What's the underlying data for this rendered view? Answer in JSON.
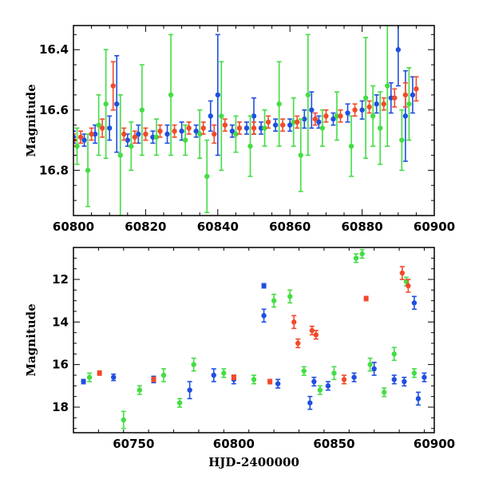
{
  "chart_data": [
    {
      "type": "scatter",
      "title": "",
      "xlabel": "",
      "ylabel": "Magnitude",
      "xlim": [
        60800,
        60900
      ],
      "ylim": [
        16.95,
        16.32
      ],
      "y_inverted": true,
      "error_bars": true,
      "x_ticks": [
        60800,
        60820,
        60840,
        60860,
        60880,
        60900
      ],
      "y_ticks": [
        16.4,
        16.6,
        16.8
      ],
      "series": [
        {
          "color": "#1f4fe0",
          "x": [
            60800,
            60803,
            60806,
            60810,
            60812,
            60815,
            60818,
            60822,
            60826,
            60830,
            60834,
            60838,
            60840,
            60844,
            60848,
            60850,
            60852,
            60856,
            60860,
            60864,
            60866,
            60868,
            60872,
            60876,
            60880,
            60884,
            60888,
            60890,
            60892,
            60894
          ],
          "y": [
            16.69,
            16.7,
            16.68,
            16.66,
            16.58,
            16.7,
            16.68,
            16.69,
            16.68,
            16.67,
            16.67,
            16.62,
            16.55,
            16.67,
            16.66,
            16.62,
            16.66,
            16.65,
            16.65,
            16.63,
            16.6,
            16.64,
            16.63,
            16.61,
            16.6,
            16.58,
            16.56,
            16.4,
            16.62,
            16.55
          ],
          "err": [
            0.02,
            0.02,
            0.03,
            0.04,
            0.16,
            0.02,
            0.03,
            0.02,
            0.03,
            0.03,
            0.02,
            0.05,
            0.2,
            0.02,
            0.02,
            0.06,
            0.02,
            0.02,
            0.02,
            0.03,
            0.06,
            0.02,
            0.02,
            0.03,
            0.03,
            0.03,
            0.05,
            0.12,
            0.15,
            0.06
          ]
        },
        {
          "color": "#44dd44",
          "x": [
            60801,
            60804,
            60807,
            60809,
            60813,
            60816,
            60819,
            60823,
            60827,
            60831,
            60835,
            60837,
            60841,
            60845,
            60849,
            60853,
            60857,
            60861,
            60863,
            60865,
            60869,
            60873,
            60877,
            60881,
            60883,
            60885,
            60887,
            60891,
            60893
          ],
          "y": [
            16.72,
            16.8,
            16.65,
            16.58,
            16.75,
            16.72,
            16.6,
            16.69,
            16.55,
            16.7,
            16.68,
            16.82,
            16.62,
            16.68,
            16.72,
            16.66,
            16.58,
            16.64,
            16.75,
            16.55,
            16.66,
            16.62,
            16.72,
            16.56,
            16.62,
            16.66,
            16.52,
            16.7,
            16.58
          ],
          "err": [
            0.06,
            0.12,
            0.1,
            0.18,
            0.2,
            0.08,
            0.15,
            0.06,
            0.2,
            0.05,
            0.08,
            0.12,
            0.18,
            0.06,
            0.1,
            0.06,
            0.14,
            0.08,
            0.12,
            0.2,
            0.06,
            0.08,
            0.1,
            0.2,
            0.1,
            0.12,
            0.2,
            0.1,
            0.12
          ]
        },
        {
          "color": "#f24a2a",
          "x": [
            60800,
            60802,
            60805,
            60808,
            60811,
            60814,
            60817,
            60820,
            60824,
            60828,
            60832,
            60836,
            60839,
            60842,
            60846,
            60850,
            60854,
            60858,
            60862,
            60867,
            60870,
            60874,
            60878,
            60882,
            60886,
            60889,
            60892,
            60895
          ],
          "y": [
            16.7,
            16.69,
            16.68,
            16.66,
            16.52,
            16.68,
            16.69,
            16.68,
            16.67,
            16.67,
            16.66,
            16.66,
            16.68,
            16.65,
            16.66,
            16.66,
            16.64,
            16.65,
            16.64,
            16.63,
            16.62,
            16.62,
            16.6,
            16.59,
            16.58,
            16.56,
            16.55,
            16.53
          ],
          "err": [
            0.02,
            0.02,
            0.02,
            0.03,
            0.08,
            0.02,
            0.02,
            0.02,
            0.02,
            0.02,
            0.02,
            0.02,
            0.03,
            0.02,
            0.02,
            0.02,
            0.02,
            0.02,
            0.02,
            0.02,
            0.02,
            0.02,
            0.02,
            0.02,
            0.02,
            0.03,
            0.04,
            0.04
          ]
        }
      ]
    },
    {
      "type": "scatter",
      "title": "",
      "xlabel": "HJD-2400000",
      "ylabel": "Magnitude",
      "xlim": [
        60720,
        60900
      ],
      "ylim": [
        19.2,
        10.5
      ],
      "y_inverted": true,
      "error_bars": true,
      "x_ticks": [
        60750,
        60800,
        60850,
        60900
      ],
      "y_ticks": [
        12,
        14,
        16,
        18
      ],
      "series": [
        {
          "color": "#1f4fe0",
          "x": [
            60725,
            60740,
            60760,
            60778,
            60790,
            60800,
            60815,
            60815,
            60822,
            60838,
            60840,
            60847,
            60860,
            60870,
            60880,
            60885,
            60890,
            60892,
            60895
          ],
          "y": [
            16.8,
            16.6,
            16.7,
            17.2,
            16.5,
            16.7,
            12.3,
            13.7,
            16.9,
            17.8,
            16.8,
            17.0,
            16.6,
            16.2,
            16.7,
            16.8,
            13.1,
            17.6,
            16.6
          ],
          "err": [
            0.1,
            0.15,
            0.15,
            0.4,
            0.3,
            0.2,
            0.1,
            0.3,
            0.2,
            0.3,
            0.2,
            0.2,
            0.2,
            0.3,
            0.2,
            0.2,
            0.3,
            0.3,
            0.2
          ]
        },
        {
          "color": "#44dd44",
          "x": [
            60728,
            60745,
            60753,
            60765,
            60773,
            60780,
            60795,
            60810,
            60820,
            60828,
            60835,
            60843,
            60850,
            60861,
            60864,
            60868,
            60875,
            60880,
            60886,
            60890
          ],
          "y": [
            16.6,
            18.6,
            17.2,
            16.5,
            17.8,
            16.0,
            16.4,
            16.7,
            13.0,
            12.8,
            16.3,
            17.2,
            16.4,
            11.0,
            10.8,
            16.0,
            17.3,
            15.5,
            12.1,
            16.4
          ],
          "err": [
            0.2,
            0.4,
            0.2,
            0.3,
            0.2,
            0.3,
            0.2,
            0.2,
            0.3,
            0.3,
            0.2,
            0.2,
            0.3,
            0.2,
            0.2,
            0.3,
            0.2,
            0.3,
            0.2,
            0.2
          ]
        },
        {
          "color": "#f24a2a",
          "x": [
            60733,
            60760,
            60800,
            60818,
            60830,
            60832,
            60839,
            60841,
            60855,
            60866,
            60884,
            60887
          ],
          "y": [
            16.4,
            16.7,
            16.6,
            16.8,
            14.0,
            15.0,
            14.4,
            14.6,
            16.7,
            12.9,
            11.7,
            12.3
          ],
          "err": [
            0.1,
            0.1,
            0.1,
            0.1,
            0.3,
            0.2,
            0.2,
            0.2,
            0.2,
            0.1,
            0.3,
            0.3
          ]
        }
      ]
    }
  ]
}
